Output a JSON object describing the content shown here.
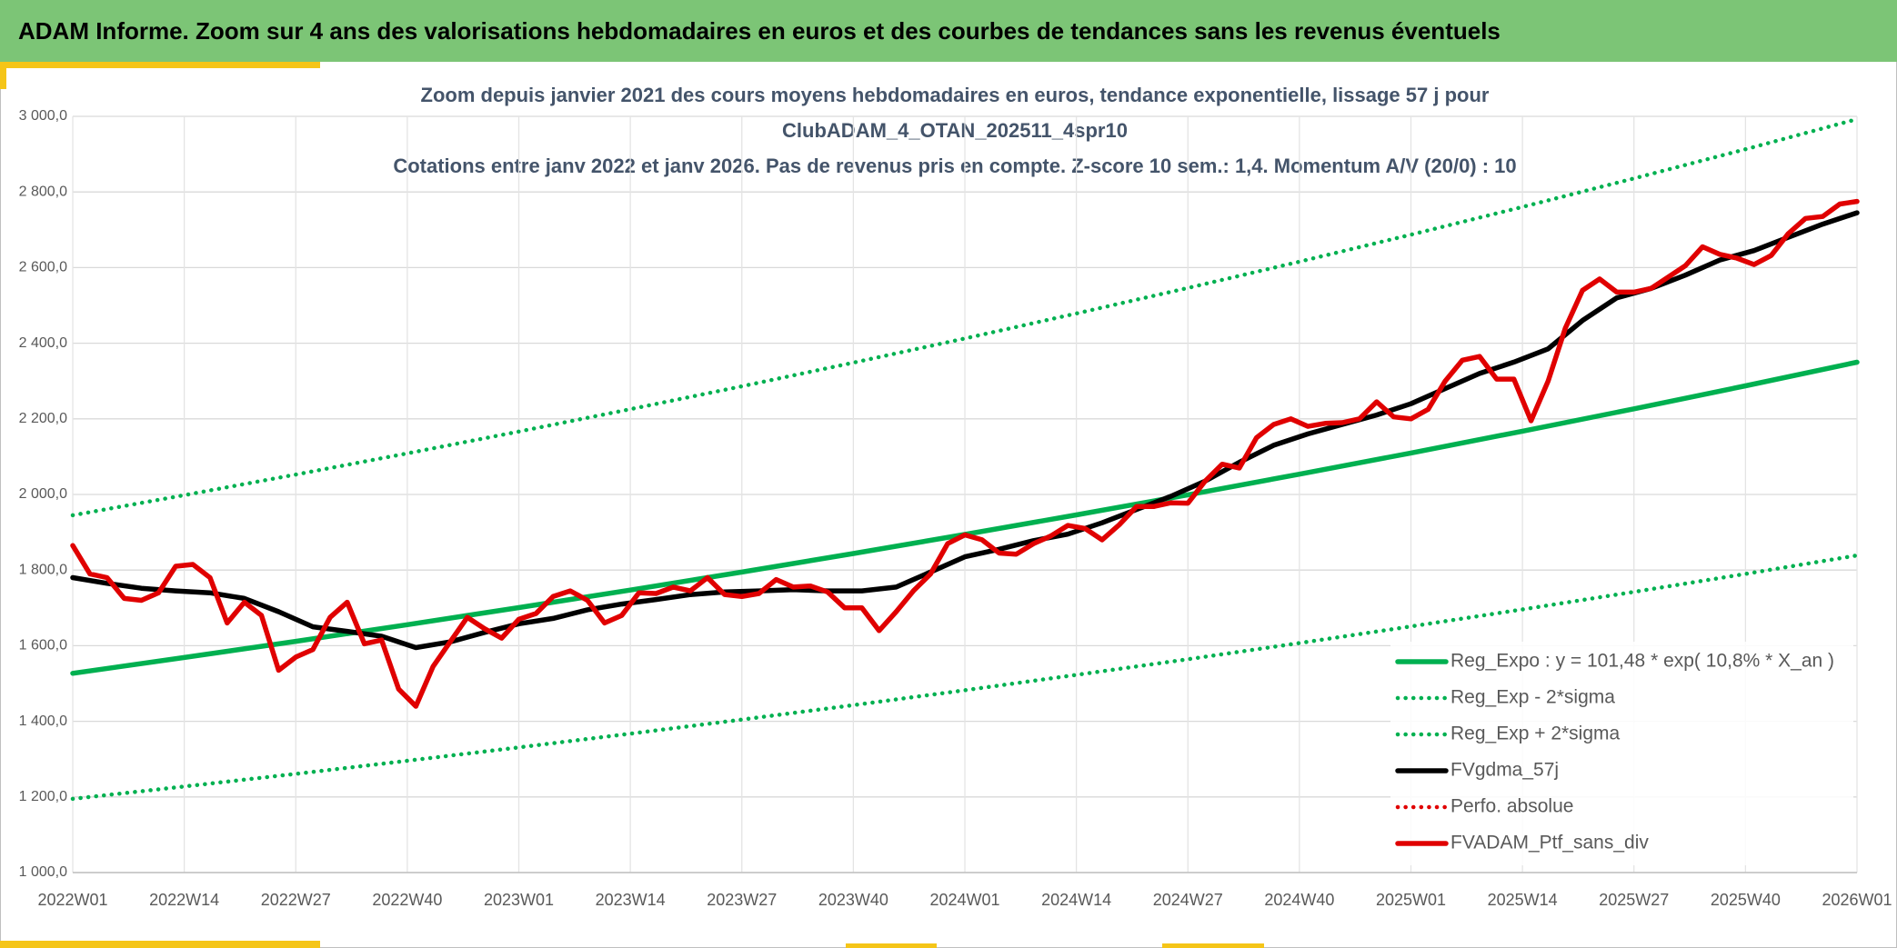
{
  "header": {
    "title": "ADAM Informe. Zoom sur 4 ans des valorisations hebdomadaires en euros et des courbes de tendances sans les revenus éventuels"
  },
  "chart_data": {
    "type": "line",
    "title": [
      "Zoom depuis janvier 2021 des cours moyens hebdomadaires en euros, tendance exponentielle, lissage 57 j pour",
      "ClubADAM_4_OTAN_202511_4spr10",
      "Cotations entre janv 2022 et janv 2026. Pas de revenus pris en compte. Z-score 10 sem.: 1,4. Momentum A/V (20/0) : 10"
    ],
    "xlim": [
      0,
      208
    ],
    "xticks": [
      {
        "value": 0,
        "label": "2022W01"
      },
      {
        "value": 13,
        "label": "2022W14"
      },
      {
        "value": 26,
        "label": "2022W27"
      },
      {
        "value": 39,
        "label": "2022W40"
      },
      {
        "value": 52,
        "label": "2023W01"
      },
      {
        "value": 65,
        "label": "2023W14"
      },
      {
        "value": 78,
        "label": "2023W27"
      },
      {
        "value": 91,
        "label": "2023W40"
      },
      {
        "value": 104,
        "label": "2024W01"
      },
      {
        "value": 117,
        "label": "2024W14"
      },
      {
        "value": 130,
        "label": "2024W27"
      },
      {
        "value": 143,
        "label": "2024W40"
      },
      {
        "value": 156,
        "label": "2025W01"
      },
      {
        "value": 169,
        "label": "2025W14"
      },
      {
        "value": 182,
        "label": "2025W27"
      },
      {
        "value": 195,
        "label": "2025W40"
      },
      {
        "value": 208,
        "label": "2026W01"
      }
    ],
    "ylim": [
      1000,
      3000
    ],
    "yticks": [
      {
        "value": 1000,
        "label": "1 000,0"
      },
      {
        "value": 1200,
        "label": "1 200,0"
      },
      {
        "value": 1400,
        "label": "1 400,0"
      },
      {
        "value": 1600,
        "label": "1 600,0"
      },
      {
        "value": 1800,
        "label": "1 800,0"
      },
      {
        "value": 2000,
        "label": "2 000,0"
      },
      {
        "value": 2200,
        "label": "2 200,0"
      },
      {
        "value": 2400,
        "label": "2 400,0"
      },
      {
        "value": 2600,
        "label": "2 600,0"
      },
      {
        "value": 2800,
        "label": "2 800,0"
      },
      {
        "value": 3000,
        "label": "3 000,0"
      }
    ],
    "grid": true,
    "legend": "lower right",
    "series": [
      {
        "name": "Reg_Expo : y = 101,48 * exp( 10,8% *  X_an )",
        "color": "#00b050",
        "dash": "solid",
        "x": [
          0,
          13,
          26,
          39,
          52,
          65,
          78,
          91,
          104,
          117,
          130,
          143,
          156,
          169,
          182,
          195,
          208
        ],
        "values": [
          1527,
          1568.7,
          1611.5,
          1655.5,
          1700.7,
          1747.1,
          1794.8,
          1843.8,
          1894.2,
          1945.9,
          1999,
          2053.6,
          2109.7,
          2167.3,
          2226.5,
          2287.2,
          2349.7
        ]
      },
      {
        "name": "Reg_Exp - 2*sigma",
        "color": "#00b050",
        "dash": "dotted",
        "x": [
          0,
          13,
          26,
          39,
          52,
          65,
          78,
          91,
          104,
          117,
          130,
          143,
          156,
          169,
          182,
          195,
          208
        ],
        "values": [
          1195,
          1227.6,
          1261.1,
          1295.6,
          1330.9,
          1367.3,
          1404.6,
          1442.9,
          1482.3,
          1522.8,
          1564.3,
          1607,
          1650.9,
          1696,
          1742.3,
          1789.8,
          1838.7
        ]
      },
      {
        "name": "Reg_Exp + 2*sigma",
        "color": "#00b050",
        "dash": "dotted",
        "x": [
          0,
          13,
          26,
          39,
          52,
          65,
          78,
          91,
          104,
          117,
          130,
          143,
          156,
          169,
          182,
          195,
          208
        ],
        "values": [
          1945,
          1998.1,
          2052.7,
          2108.7,
          2166.3,
          2225.4,
          2286.1,
          2348.5,
          2412.6,
          2478.5,
          2546.1,
          2615.6,
          2687,
          2760.4,
          2835.7,
          2913.1,
          2992.6
        ]
      },
      {
        "name": "FVgdma_57j",
        "color": "#000000",
        "dash": "solid",
        "x": [
          0,
          4,
          8,
          12,
          16,
          20,
          24,
          28,
          32,
          36,
          40,
          44,
          48,
          52,
          56,
          60,
          64,
          68,
          72,
          76,
          80,
          84,
          88,
          92,
          96,
          100,
          104,
          108,
          112,
          116,
          120,
          124,
          128,
          132,
          136,
          140,
          144,
          148,
          152,
          156,
          160,
          164,
          168,
          172,
          176,
          180,
          184,
          188,
          192,
          196,
          200,
          204,
          208
        ],
        "values": [
          1780,
          1765,
          1752,
          1745,
          1740,
          1725,
          1690,
          1650,
          1638,
          1625,
          1595,
          1610,
          1635,
          1658,
          1672,
          1695,
          1710,
          1722,
          1735,
          1742,
          1745,
          1748,
          1745,
          1745,
          1755,
          1795,
          1835,
          1855,
          1878,
          1895,
          1925,
          1960,
          1995,
          2035,
          2085,
          2130,
          2160,
          2185,
          2210,
          2240,
          2280,
          2320,
          2350,
          2385,
          2460,
          2520,
          2545,
          2580,
          2620,
          2645,
          2680,
          2715,
          2745
        ]
      },
      {
        "name": "Perfo. absolue",
        "color": "#e00000",
        "dash": "dotted",
        "x": [],
        "values": []
      },
      {
        "name": "FVADAM_Ptf_sans_div",
        "color": "#e00000",
        "dash": "solid",
        "x": [
          0,
          2,
          4,
          6,
          8,
          10,
          12,
          14,
          16,
          18,
          20,
          22,
          24,
          26,
          28,
          30,
          32,
          34,
          36,
          38,
          40,
          42,
          44,
          46,
          48,
          50,
          52,
          54,
          56,
          58,
          60,
          62,
          64,
          66,
          68,
          70,
          72,
          74,
          76,
          78,
          80,
          82,
          84,
          86,
          88,
          90,
          92,
          94,
          96,
          98,
          100,
          102,
          104,
          106,
          108,
          110,
          112,
          114,
          116,
          118,
          120,
          122,
          124,
          126,
          128,
          130,
          132,
          134,
          136,
          138,
          140,
          142,
          144,
          146,
          148,
          150,
          152,
          154,
          156,
          158,
          160,
          162,
          164,
          166,
          168,
          170,
          172,
          174,
          176,
          178,
          180,
          182,
          184,
          186,
          188,
          190,
          192,
          194,
          196,
          198,
          200,
          202,
          204,
          206,
          208
        ],
        "values": [
          1865,
          1790,
          1780,
          1725,
          1720,
          1740,
          1810,
          1815,
          1780,
          1660,
          1715,
          1680,
          1535,
          1570,
          1590,
          1675,
          1715,
          1605,
          1615,
          1485,
          1440,
          1545,
          1610,
          1675,
          1645,
          1620,
          1670,
          1685,
          1730,
          1745,
          1720,
          1660,
          1680,
          1740,
          1738,
          1755,
          1745,
          1780,
          1735,
          1730,
          1738,
          1775,
          1755,
          1758,
          1742,
          1700,
          1700,
          1640,
          1690,
          1745,
          1790,
          1870,
          1893,
          1880,
          1845,
          1842,
          1870,
          1890,
          1918,
          1910,
          1880,
          1920,
          1968,
          1968,
          1978,
          1977,
          2035,
          2080,
          2070,
          2150,
          2185,
          2200,
          2180,
          2188,
          2190,
          2200,
          2245,
          2205,
          2200,
          2225,
          2300,
          2355,
          2365,
          2305,
          2305,
          2195,
          2300,
          2440,
          2540,
          2570,
          2535,
          2535,
          2545,
          2575,
          2605,
          2655,
          2635,
          2625,
          2608,
          2632,
          2690,
          2730,
          2735,
          2768,
          2775
        ]
      }
    ]
  }
}
